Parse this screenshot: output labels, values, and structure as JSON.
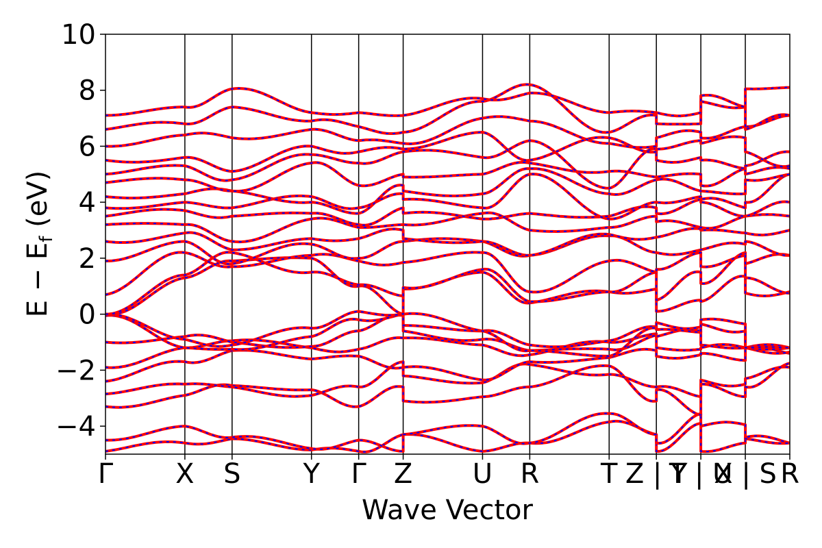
{
  "chart_data": {
    "type": "line",
    "title": "",
    "xlabel": "Wave Vector",
    "ylabel": "E − E",
    "ylabel_sub": "f",
    "ylabel_unit": " (eV)",
    "ylim": [
      -5,
      10
    ],
    "yticks": [
      -4,
      -2,
      0,
      2,
      4,
      6,
      8,
      10
    ],
    "ytick_labels": [
      "−4",
      "−2",
      "0",
      "2",
      "4",
      "6",
      "8",
      "10"
    ],
    "xlim": [
      0,
      10
    ],
    "kpoints": [
      {
        "label": "Γ",
        "x": 0.0
      },
      {
        "label": "X",
        "x": 1.16
      },
      {
        "label": "S",
        "x": 1.85
      },
      {
        "label": "Y",
        "x": 3.01
      },
      {
        "label": "Γ",
        "x": 3.7
      },
      {
        "label": "Z",
        "x": 4.35
      },
      {
        "label": "U",
        "x": 5.51
      },
      {
        "label": "R",
        "x": 6.2
      },
      {
        "label": "T",
        "x": 7.36
      },
      {
        "label": "Z | Y",
        "x": 8.05
      },
      {
        "label": "T | U",
        "x": 8.7
      },
      {
        "label": "X | S",
        "x": 9.35
      },
      {
        "label": "R",
        "x": 10.0
      }
    ],
    "segments": [
      [
        0.0,
        1.16
      ],
      [
        1.16,
        1.85
      ],
      [
        1.85,
        3.01
      ],
      [
        3.01,
        3.7
      ],
      [
        3.7,
        4.35
      ],
      [
        4.35,
        5.51
      ],
      [
        5.51,
        6.2
      ],
      [
        6.2,
        7.36
      ],
      [
        7.36,
        8.05
      ],
      [
        8.05,
        8.7
      ],
      [
        8.7,
        9.35
      ],
      [
        9.35,
        10.0
      ]
    ],
    "series": [
      {
        "color": "#ff0000",
        "style": "solid",
        "width": 4
      },
      {
        "color": "#0000ff",
        "style": "dashed",
        "width": 2
      }
    ],
    "bands": [
      [
        [
          -4.9,
          -4.6
        ],
        [
          -4.6,
          -4.45
        ],
        [
          -4.45,
          -4.85
        ],
        [
          -4.85,
          -4.9
        ],
        [
          -4.9,
          -4.3
        ],
        [
          -4.3,
          -4.9
        ],
        [
          -4.9,
          -4.6
        ],
        [
          -4.6,
          -3.85
        ],
        [
          -3.85,
          -4.3
        ],
        [
          -4.9,
          -3.9
        ],
        [
          -4.9,
          -4.6
        ],
        [
          -4.4,
          -4.6
        ]
      ],
      [
        [
          -4.5,
          -4.0
        ],
        [
          -4.0,
          -4.4
        ],
        [
          -4.4,
          -4.8
        ],
        [
          -4.8,
          -4.5
        ],
        [
          -4.5,
          -4.9
        ],
        [
          -4.3,
          -4.0
        ],
        [
          -4.0,
          -4.6
        ],
        [
          -4.6,
          -3.55
        ],
        [
          -3.55,
          -4.3
        ],
        [
          -4.6,
          -3.55
        ],
        [
          -4.0,
          -3.95
        ],
        [
          -4.45,
          -4.6
        ]
      ],
      [
        [
          -3.3,
          -2.9
        ],
        [
          -2.9,
          -2.55
        ],
        [
          -2.55,
          -2.7
        ],
        [
          -2.7,
          -3.3
        ],
        [
          -3.3,
          -2.6
        ],
        [
          -3.1,
          -2.95
        ],
        [
          -2.95,
          -2.6
        ],
        [
          -2.6,
          -1.85
        ],
        [
          -1.85,
          -3.1
        ],
        [
          -2.7,
          -3.6
        ],
        [
          -2.5,
          -2.95
        ],
        [
          -2.6,
          -1.75
        ]
      ],
      [
        [
          -2.85,
          -2.5
        ],
        [
          -2.5,
          -2.6
        ],
        [
          -2.6,
          -2.9
        ],
        [
          -2.9,
          -2.6
        ],
        [
          -2.6,
          -1.7
        ],
        [
          -2.2,
          -2.45
        ],
        [
          -2.45,
          -1.8
        ],
        [
          -1.8,
          -2.15
        ],
        [
          -2.15,
          -2.6
        ],
        [
          -2.6,
          -2.95
        ],
        [
          -2.35,
          -2.5
        ],
        [
          -2.3,
          -1.9
        ]
      ],
      [
        [
          -2.4,
          -1.7
        ],
        [
          -1.7,
          -1.3
        ],
        [
          -1.3,
          -1.6
        ],
        [
          -1.6,
          -1.5
        ],
        [
          -1.5,
          -1.9
        ],
        [
          -1.9,
          -2.35
        ],
        [
          -2.35,
          -1.7
        ],
        [
          -1.7,
          -1.55
        ],
        [
          -1.55,
          -1.3
        ],
        [
          -1.5,
          -1.45
        ],
        [
          -1.4,
          -1.65
        ],
        [
          -1.2,
          -1.4
        ]
      ],
      [
        [
          -1.9,
          -1.2
        ],
        [
          -1.2,
          -0.95
        ],
        [
          -0.95,
          -1.2
        ],
        [
          -1.2,
          -1.25
        ],
        [
          -1.25,
          -0.85
        ],
        [
          -0.85,
          -1.1
        ],
        [
          -1.1,
          -1.45
        ],
        [
          -1.45,
          -1.0
        ],
        [
          -1.0,
          -0.7
        ],
        [
          -1.2,
          -1.25
        ],
        [
          -1.2,
          -1.2
        ],
        [
          -1.2,
          -1.35
        ]
      ],
      [
        [
          -1.0,
          -0.8
        ],
        [
          -0.8,
          -1.0
        ],
        [
          -1.0,
          -1.15
        ],
        [
          -1.15,
          -0.6
        ],
        [
          -0.6,
          -0.05
        ],
        [
          -0.6,
          -0.9
        ],
        [
          -0.9,
          -1.3
        ],
        [
          -1.3,
          -1.25
        ],
        [
          -1.25,
          -0.75
        ],
        [
          -0.8,
          -0.6
        ],
        [
          -1.1,
          -1.2
        ],
        [
          -1.2,
          -1.2
        ]
      ],
      [
        [
          -0.05,
          -1.2
        ],
        [
          -1.2,
          -1.25
        ],
        [
          -1.25,
          -0.8
        ],
        [
          -0.8,
          -0.2
        ],
        [
          -0.2,
          0.0
        ],
        [
          -0.4,
          -0.6
        ],
        [
          -0.6,
          -1.1
        ],
        [
          -1.1,
          -0.95
        ],
        [
          -0.95,
          -0.45
        ],
        [
          -0.55,
          -0.65
        ],
        [
          -0.35,
          -0.6
        ],
        [
          -1.2,
          -1.2
        ]
      ],
      [
        [
          0.0,
          -0.9
        ],
        [
          -0.9,
          -1.1
        ],
        [
          -1.1,
          -0.5
        ],
        [
          -0.5,
          0.1
        ],
        [
          0.1,
          0.0
        ],
        [
          0.0,
          -0.6
        ],
        [
          -0.6,
          -1.3
        ],
        [
          -1.3,
          -1.5
        ],
        [
          -1.5,
          -0.5
        ],
        [
          -0.3,
          -0.45
        ],
        [
          -0.2,
          -0.35
        ],
        [
          -1.2,
          -1.2
        ]
      ],
      [
        [
          0.0,
          1.3
        ],
        [
          1.3,
          1.9
        ],
        [
          1.9,
          2.0
        ],
        [
          2.0,
          1.0
        ],
        [
          1.0,
          0.0
        ],
        [
          0.9,
          1.5
        ],
        [
          1.5,
          0.4
        ],
        [
          0.4,
          0.8
        ],
        [
          0.8,
          0.9
        ],
        [
          0.1,
          0.5
        ],
        [
          0.45,
          1.35
        ],
        [
          0.75,
          0.8
        ]
      ],
      [
        [
          0.0,
          1.4
        ],
        [
          1.4,
          2.2
        ],
        [
          2.2,
          1.5
        ],
        [
          1.5,
          1.05
        ],
        [
          1.05,
          0.65
        ],
        [
          0.95,
          1.6
        ],
        [
          1.6,
          0.45
        ],
        [
          0.45,
          0.8
        ],
        [
          0.8,
          1.5
        ],
        [
          0.5,
          1.5
        ],
        [
          1.1,
          2.2
        ],
        [
          1.3,
          0.75
        ]
      ],
      [
        [
          0.7,
          2.2
        ],
        [
          2.2,
          1.7
        ],
        [
          1.7,
          2.1
        ],
        [
          2.1,
          1.9
        ],
        [
          1.9,
          1.85
        ],
        [
          1.85,
          2.2
        ],
        [
          2.2,
          0.8
        ],
        [
          0.8,
          1.9
        ],
        [
          1.9,
          1.5
        ],
        [
          1.6,
          2.2
        ],
        [
          1.7,
          2.1
        ],
        [
          1.8,
          2.1
        ]
      ],
      [
        [
          1.9,
          2.6
        ],
        [
          2.6,
          1.8
        ],
        [
          1.8,
          2.5
        ],
        [
          2.5,
          2.0
        ],
        [
          2.0,
          2.6
        ],
        [
          2.6,
          2.6
        ],
        [
          2.6,
          2.1
        ],
        [
          2.1,
          2.8
        ],
        [
          2.8,
          2.2
        ],
        [
          2.2,
          2.3
        ],
        [
          2.3,
          2.5
        ],
        [
          2.6,
          2.1
        ]
      ],
      [
        [
          2.6,
          2.9
        ],
        [
          2.9,
          2.3
        ],
        [
          2.3,
          2.7
        ],
        [
          2.7,
          2.7
        ],
        [
          2.7,
          3.0
        ],
        [
          2.7,
          2.6
        ],
        [
          2.6,
          2.1
        ],
        [
          2.1,
          2.85
        ],
        [
          2.85,
          2.75
        ],
        [
          2.75,
          3.05
        ],
        [
          3.0,
          2.9
        ],
        [
          2.9,
          3.0
        ]
      ],
      [
        [
          3.2,
          3.2
        ],
        [
          3.2,
          2.6
        ],
        [
          2.6,
          3.4
        ],
        [
          3.4,
          3.1
        ],
        [
          3.1,
          3.2
        ],
        [
          3.2,
          3.6
        ],
        [
          3.6,
          3.0
        ],
        [
          3.0,
          3.1
        ],
        [
          3.1,
          3.5
        ],
        [
          3.3,
          3.1
        ],
        [
          3.1,
          3.5
        ],
        [
          3.5,
          3.5
        ]
      ],
      [
        [
          3.5,
          3.7
        ],
        [
          3.7,
          3.5
        ],
        [
          3.5,
          3.6
        ],
        [
          3.6,
          3.2
        ],
        [
          3.2,
          3.8
        ],
        [
          3.6,
          3.4
        ],
        [
          3.4,
          3.6
        ],
        [
          3.6,
          3.5
        ],
        [
          3.5,
          3.8
        ],
        [
          3.6,
          4.1
        ],
        [
          4.0,
          3.5
        ],
        [
          3.5,
          4.0
        ]
      ],
      [
        [
          3.8,
          4.0
        ],
        [
          4.0,
          3.8
        ],
        [
          3.8,
          4.2
        ],
        [
          4.2,
          3.8
        ],
        [
          3.8,
          4.3
        ],
        [
          4.1,
          3.8
        ],
        [
          3.8,
          5.0
        ],
        [
          5.0,
          3.4
        ],
        [
          3.4,
          4.0
        ],
        [
          4.0,
          4.2
        ],
        [
          4.1,
          3.8
        ],
        [
          4.0,
          5.0
        ]
      ],
      [
        [
          4.2,
          4.3
        ],
        [
          4.3,
          4.4
        ],
        [
          4.4,
          4.0
        ],
        [
          4.0,
          3.6
        ],
        [
          3.6,
          4.6
        ],
        [
          4.4,
          4.3
        ],
        [
          4.3,
          5.2
        ],
        [
          5.2,
          4.3
        ],
        [
          4.3,
          4.8
        ],
        [
          4.8,
          4.4
        ],
        [
          4.4,
          4.3
        ],
        [
          4.8,
          5.0
        ]
      ],
      [
        [
          4.7,
          4.8
        ],
        [
          4.8,
          4.4
        ],
        [
          4.4,
          5.4
        ],
        [
          5.4,
          4.6
        ],
        [
          4.6,
          5.0
        ],
        [
          4.9,
          5.0
        ],
        [
          5.0,
          5.4
        ],
        [
          5.4,
          5.1
        ],
        [
          5.1,
          4.9
        ],
        [
          4.9,
          5.0
        ],
        [
          4.6,
          5.2
        ],
        [
          5.0,
          5.2
        ]
      ],
      [
        [
          5.0,
          5.3
        ],
        [
          5.3,
          4.8
        ],
        [
          4.8,
          5.7
        ],
        [
          5.7,
          5.4
        ],
        [
          5.4,
          5.8
        ],
        [
          5.8,
          5.6
        ],
        [
          5.6,
          6.2
        ],
        [
          6.2,
          4.5
        ],
        [
          4.5,
          5.9
        ],
        [
          5.5,
          5.6
        ],
        [
          5.5,
          5.2
        ],
        [
          5.3,
          5.8
        ]
      ],
      [
        [
          5.5,
          5.6
        ],
        [
          5.6,
          5.1
        ],
        [
          5.1,
          6.0
        ],
        [
          6.0,
          5.8
        ],
        [
          5.8,
          5.9
        ],
        [
          5.9,
          6.5
        ],
        [
          6.5,
          5.5
        ],
        [
          5.5,
          6.3
        ],
        [
          6.3,
          5.8
        ],
        [
          5.9,
          6.2
        ],
        [
          6.1,
          6.3
        ],
        [
          5.8,
          5.3
        ]
      ],
      [
        [
          6.0,
          6.4
        ],
        [
          6.4,
          6.3
        ],
        [
          6.3,
          6.6
        ],
        [
          6.6,
          6.2
        ],
        [
          6.2,
          6.1
        ],
        [
          6.1,
          7.0
        ],
        [
          7.0,
          6.9
        ],
        [
          6.9,
          6.1
        ],
        [
          6.1,
          6.0
        ],
        [
          6.3,
          6.5
        ],
        [
          6.3,
          6.7
        ],
        [
          6.7,
          7.1
        ]
      ],
      [
        [
          6.6,
          6.8
        ],
        [
          6.8,
          7.4
        ],
        [
          7.4,
          6.9
        ],
        [
          6.9,
          6.7
        ],
        [
          6.7,
          6.5
        ],
        [
          6.5,
          7.6
        ],
        [
          7.6,
          8.2
        ],
        [
          8.2,
          6.5
        ],
        [
          6.5,
          7.1
        ],
        [
          6.8,
          6.8
        ],
        [
          7.6,
          7.4
        ],
        [
          6.6,
          7.1
        ]
      ],
      [
        [
          7.1,
          7.4
        ],
        [
          7.4,
          8.05
        ],
        [
          8.05,
          7.2
        ],
        [
          7.2,
          7.2
        ],
        [
          7.2,
          7.1
        ],
        [
          7.1,
          7.7
        ],
        [
          7.7,
          7.9
        ],
        [
          7.9,
          7.2
        ],
        [
          7.2,
          7.2
        ],
        [
          7.2,
          7.2
        ],
        [
          7.8,
          7.4
        ],
        [
          8.05,
          8.1
        ]
      ]
    ]
  }
}
